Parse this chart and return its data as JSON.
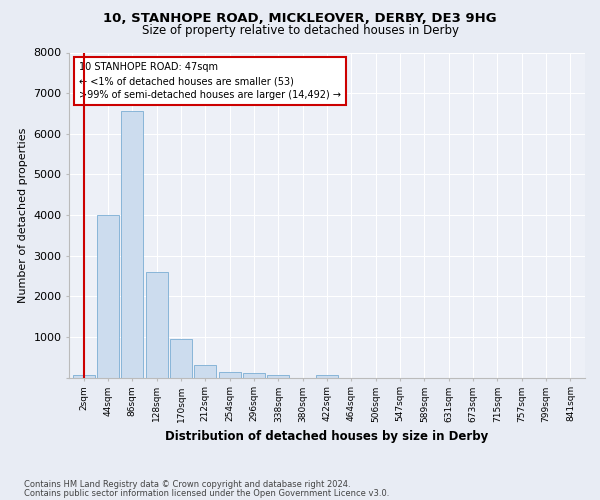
{
  "title1": "10, STANHOPE ROAD, MICKLEOVER, DERBY, DE3 9HG",
  "title2": "Size of property relative to detached houses in Derby",
  "xlabel": "Distribution of detached houses by size in Derby",
  "ylabel": "Number of detached properties",
  "bin_labels": [
    "2sqm",
    "44sqm",
    "86sqm",
    "128sqm",
    "170sqm",
    "212sqm",
    "254sqm",
    "296sqm",
    "338sqm",
    "380sqm",
    "422sqm",
    "464sqm",
    "506sqm",
    "547sqm",
    "589sqm",
    "631sqm",
    "673sqm",
    "715sqm",
    "757sqm",
    "799sqm",
    "841sqm"
  ],
  "bar_values": [
    70,
    4000,
    6550,
    2600,
    950,
    320,
    130,
    100,
    70,
    0,
    70,
    0,
    0,
    0,
    0,
    0,
    0,
    0,
    0,
    0,
    0
  ],
  "bar_color": "#ccdcee",
  "bar_edge_color": "#7aadd4",
  "annotation_lines": [
    "10 STANHOPE ROAD: 47sqm",
    "← <1% of detached houses are smaller (53)",
    ">99% of semi-detached houses are larger (14,492) →"
  ],
  "annotation_box_color": "#ffffff",
  "annotation_box_edge": "#cc0000",
  "ylim": [
    0,
    8000
  ],
  "yticks": [
    0,
    1000,
    2000,
    3000,
    4000,
    5000,
    6000,
    7000,
    8000
  ],
  "bg_color": "#e8ecf4",
  "plot_bg_color": "#edf0f7",
  "footer1": "Contains HM Land Registry data © Crown copyright and database right 2024.",
  "footer2": "Contains public sector information licensed under the Open Government Licence v3.0.",
  "red_line_color": "#cc0000"
}
